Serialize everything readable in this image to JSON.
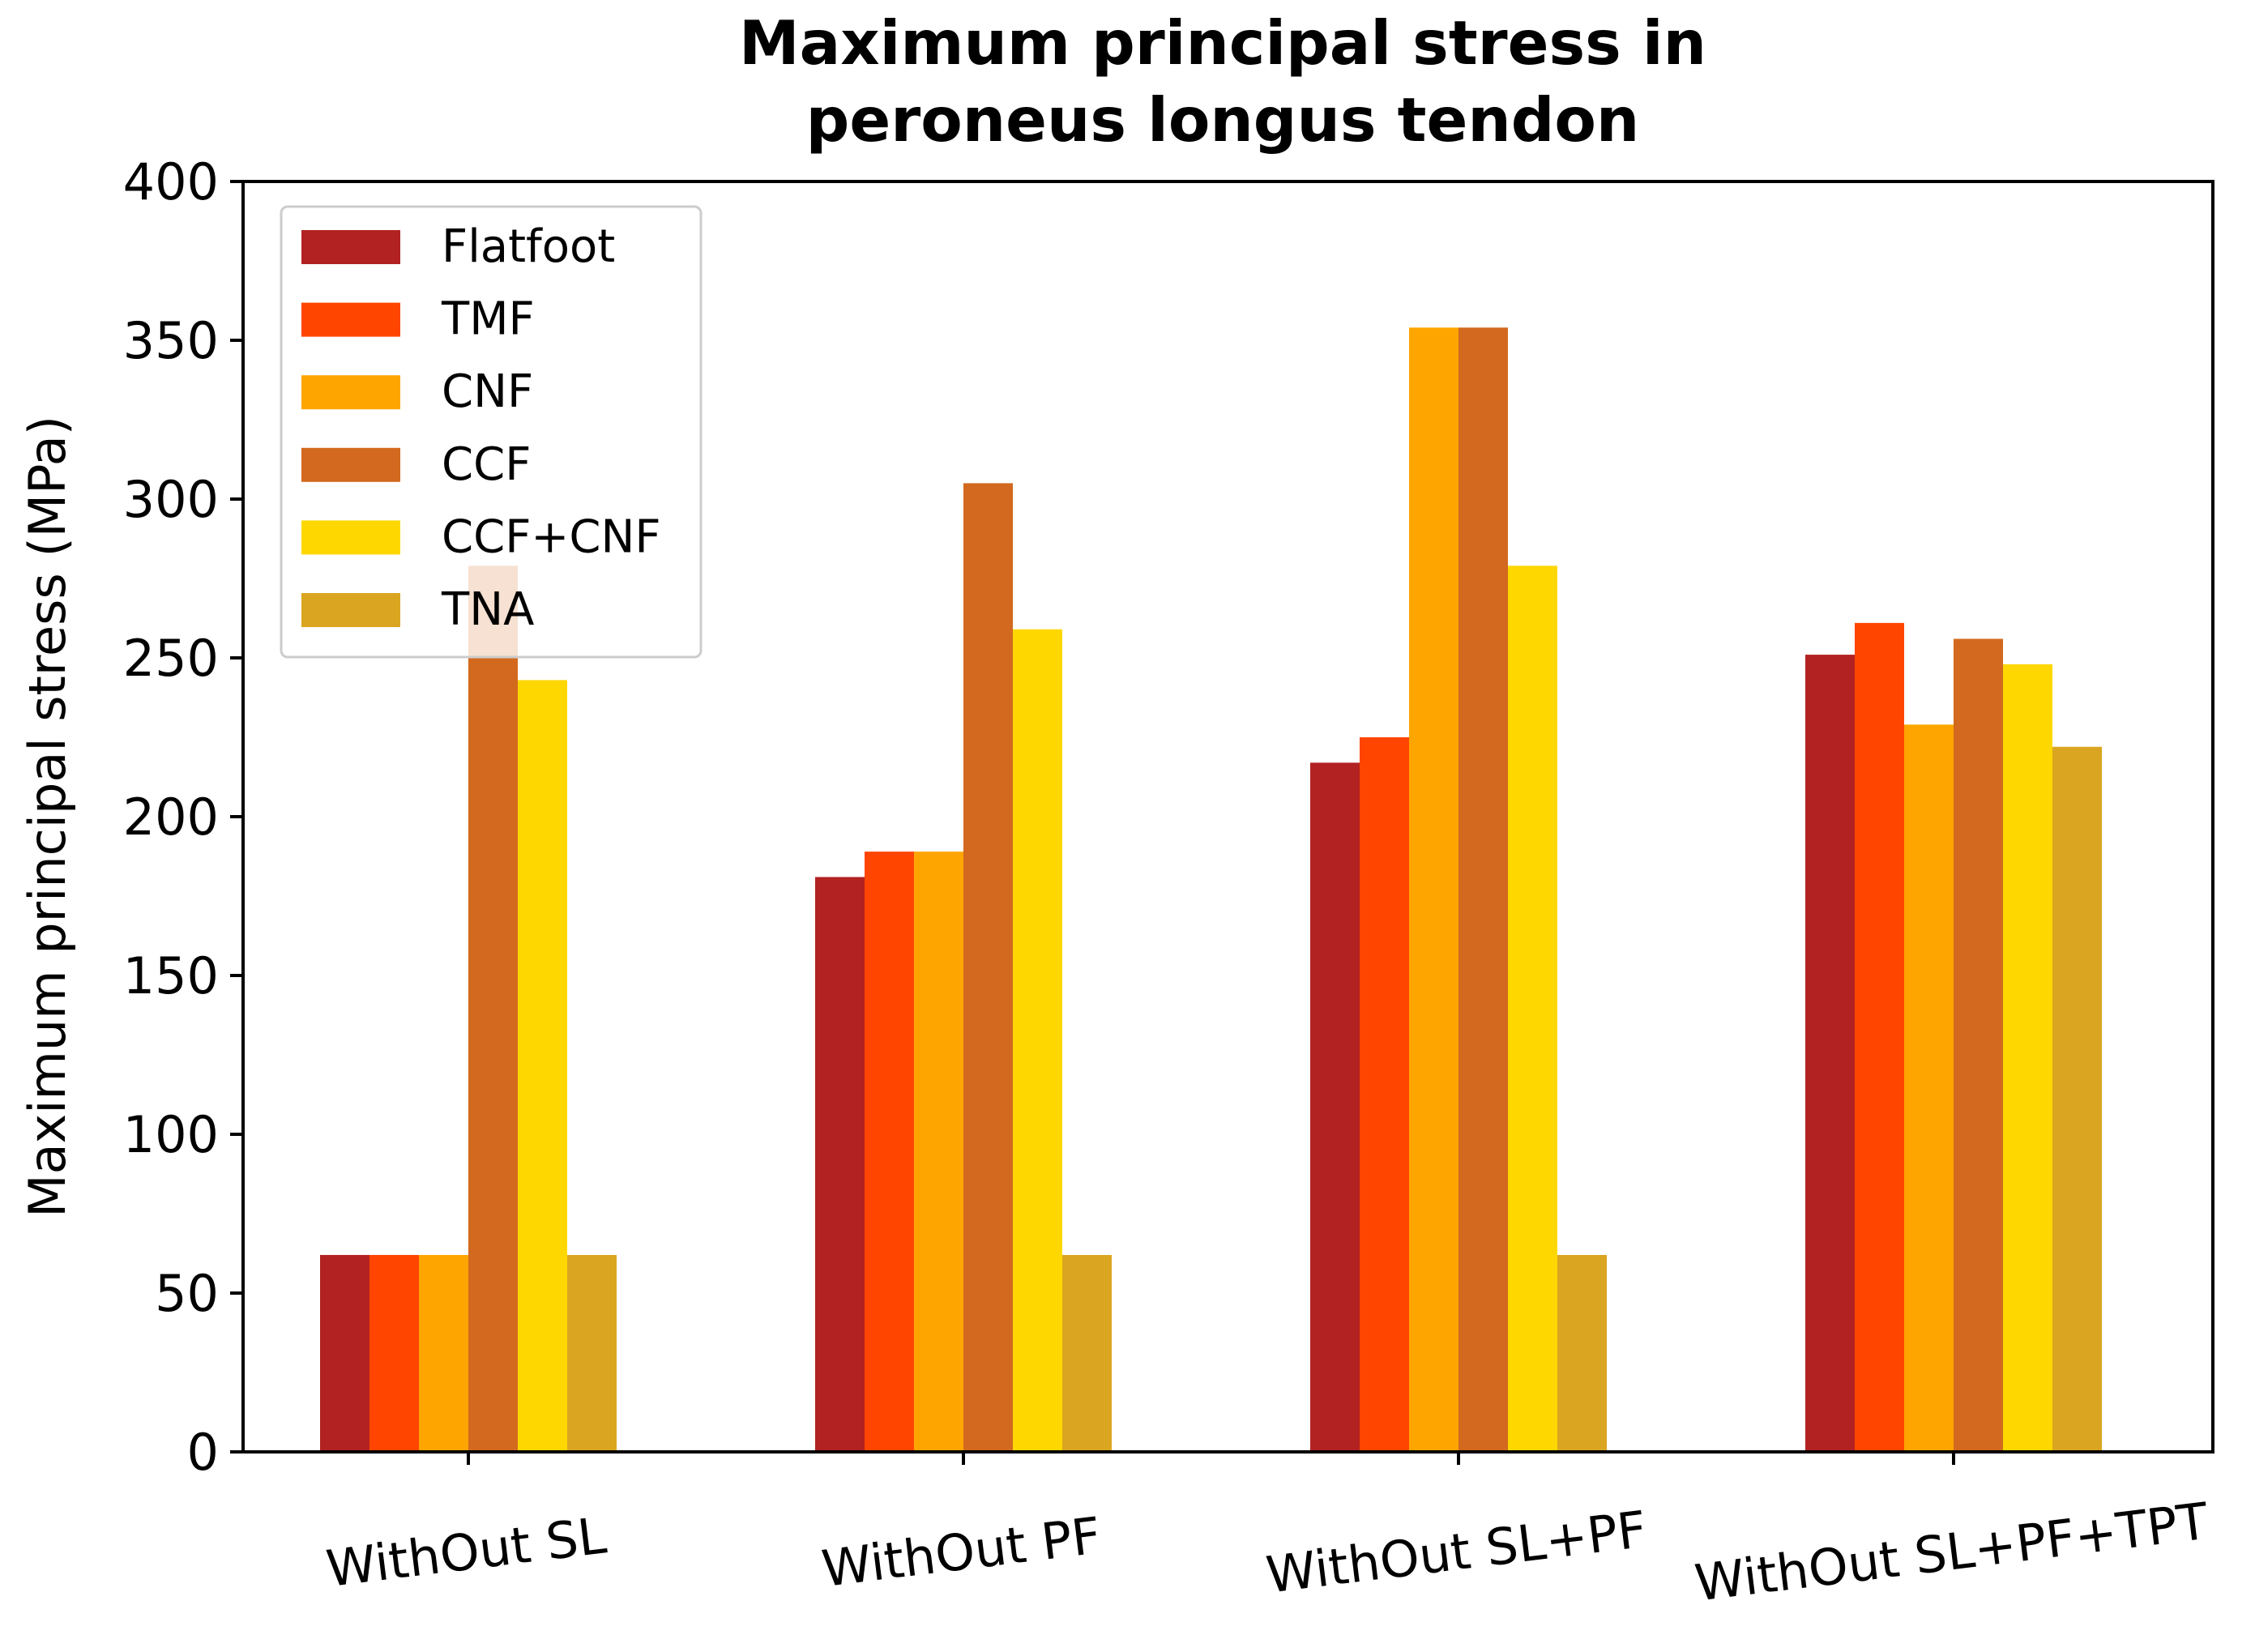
{
  "chart_data": {
    "type": "bar",
    "title_lines": [
      "Maximum principal stress in",
      "peroneus longus tendon"
    ],
    "xlabel": "",
    "ylabel": "Maximum principal stress (MPa)",
    "ylim": [
      0,
      400
    ],
    "yticks": [
      0,
      50,
      100,
      150,
      200,
      250,
      300,
      350,
      400
    ],
    "categories": [
      "WithOut SL",
      "WithOut PF",
      "WithOut SL+PF",
      "WithOut SL+PF+TPT"
    ],
    "series": [
      {
        "name": "Flatfoot",
        "color": "#b22222",
        "values": [
          62,
          181,
          217,
          251
        ]
      },
      {
        "name": "TMF",
        "color": "#ff4500",
        "values": [
          62,
          189,
          225,
          261
        ]
      },
      {
        "name": "CNF",
        "color": "#ffa500",
        "values": [
          62,
          189,
          354,
          229
        ]
      },
      {
        "name": "CCF",
        "color": "#d2691e",
        "values": [
          279,
          305,
          354,
          256
        ]
      },
      {
        "name": "CCF+CNF",
        "color": "#ffd700",
        "values": [
          243,
          259,
          279,
          248
        ]
      },
      {
        "name": "TNA",
        "color": "#daa520",
        "values": [
          62,
          62,
          62,
          222
        ]
      }
    ],
    "legend_position": "top-left",
    "grid": false
  }
}
